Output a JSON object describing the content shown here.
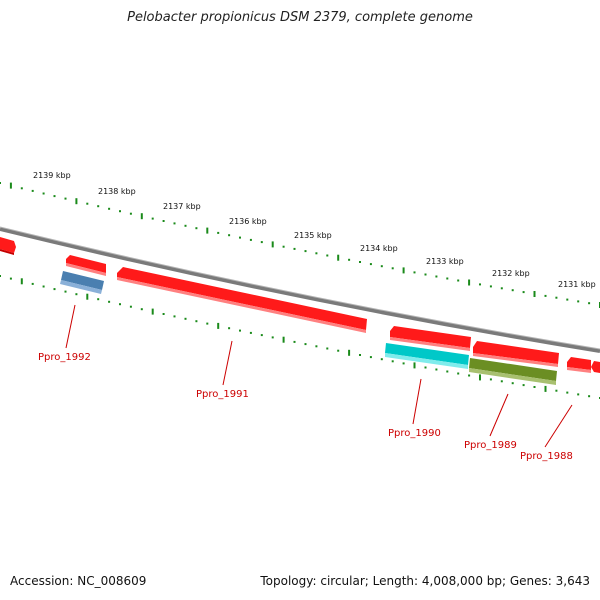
{
  "title": "Pelobacter propionicus DSM 2379, complete genome",
  "footer": {
    "accession": "Accession: NC_008609",
    "summary": "Topology: circular; Length: 4,008,000 bp; Genes: 3,643"
  },
  "colors": {
    "backbone": "#808080",
    "forward_gene": "#ff1a1a",
    "cyan_feature": "#00c8c8",
    "blue_feature": "#4a7fb0",
    "olive_feature": "#6b8e23",
    "ticks": "#1a8a1a",
    "labels": "#cc0000"
  },
  "scale_labels": [
    "2139 kbp",
    "2138 kbp",
    "2137 kbp",
    "2136 kbp",
    "2135 kbp",
    "2134 kbp",
    "2133 kbp",
    "2132 kbp",
    "2131 kbp"
  ],
  "gene_labels": [
    "Ppro_1992",
    "Ppro_1991",
    "Ppro_1990",
    "Ppro_1989",
    "Ppro_1988"
  ]
}
